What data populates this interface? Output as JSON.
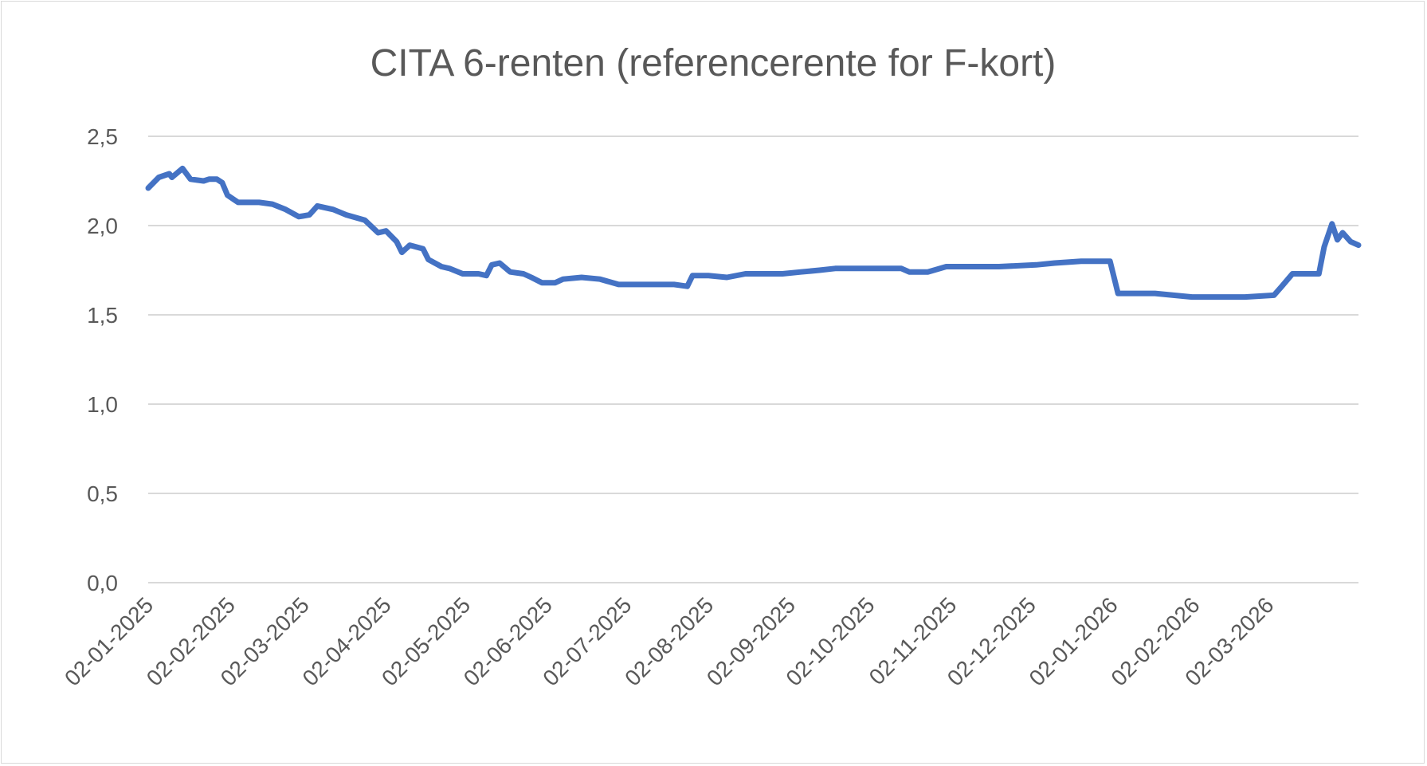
{
  "chart_data": {
    "type": "line",
    "title": "CITA 6-renten (referencerente for F-kort)",
    "xlabel": "",
    "ylabel": "",
    "ylim": [
      0,
      2.5
    ],
    "y_ticks": [
      "0,0",
      "0,5",
      "1,0",
      "1,5",
      "2,0",
      "2,5"
    ],
    "y_tick_values": [
      0,
      0.5,
      1.0,
      1.5,
      2.0,
      2.5
    ],
    "x_tick_labels": [
      "02-01-2025",
      "02-02-2025",
      "02-03-2025",
      "02-04-2025",
      "02-05-2025",
      "02-06-2025",
      "02-07-2025",
      "02-08-2025",
      "02-09-2025",
      "02-10-2025",
      "02-11-2025",
      "02-12-2025",
      "02-01-2026",
      "02-02-2026",
      "02-03-2026"
    ],
    "grid": true,
    "legend": "none",
    "series": [
      {
        "name": "CITA 6",
        "color": "#4472C4",
        "start_date": "2025-01-02",
        "day_offsets": [
          0,
          4,
          8,
          9,
          13,
          14,
          16,
          21,
          23,
          26,
          28,
          30,
          34,
          42,
          47,
          52,
          57,
          61,
          64,
          70,
          75,
          82,
          87,
          90,
          94,
          96,
          99,
          104,
          106,
          111,
          114,
          119,
          125,
          128,
          130,
          133,
          137,
          142,
          145,
          149,
          154,
          157,
          164,
          171,
          178,
          185,
          192,
          199,
          204,
          206,
          212,
          219,
          226,
          233,
          240,
          247,
          254,
          260,
          267,
          274,
          285,
          288,
          295,
          302,
          316,
          322,
          336,
          343,
          353,
          364,
          367,
          374,
          381,
          388,
          395,
          405,
          415,
          426,
          429,
          433,
          436,
          443,
          445,
          448,
          450,
          452,
          455,
          458
        ],
        "values": [
          2.21,
          2.27,
          2.29,
          2.27,
          2.32,
          2.3,
          2.26,
          2.25,
          2.26,
          2.26,
          2.24,
          2.17,
          2.13,
          2.13,
          2.12,
          2.09,
          2.05,
          2.06,
          2.11,
          2.09,
          2.06,
          2.03,
          1.96,
          1.97,
          1.91,
          1.85,
          1.89,
          1.87,
          1.81,
          1.77,
          1.76,
          1.73,
          1.73,
          1.72,
          1.78,
          1.79,
          1.74,
          1.73,
          1.71,
          1.68,
          1.68,
          1.7,
          1.71,
          1.7,
          1.67,
          1.67,
          1.67,
          1.67,
          1.66,
          1.72,
          1.72,
          1.71,
          1.73,
          1.73,
          1.73,
          1.74,
          1.75,
          1.76,
          1.76,
          1.76,
          1.76,
          1.74,
          1.74,
          1.77,
          1.77,
          1.77,
          1.78,
          1.79,
          1.8,
          1.8,
          1.62,
          1.62,
          1.62,
          1.61,
          1.6,
          1.6,
          1.6,
          1.61,
          1.66,
          1.73,
          1.73,
          1.73,
          1.88,
          2.01,
          1.92,
          1.96,
          1.91,
          1.89
        ]
      }
    ]
  }
}
